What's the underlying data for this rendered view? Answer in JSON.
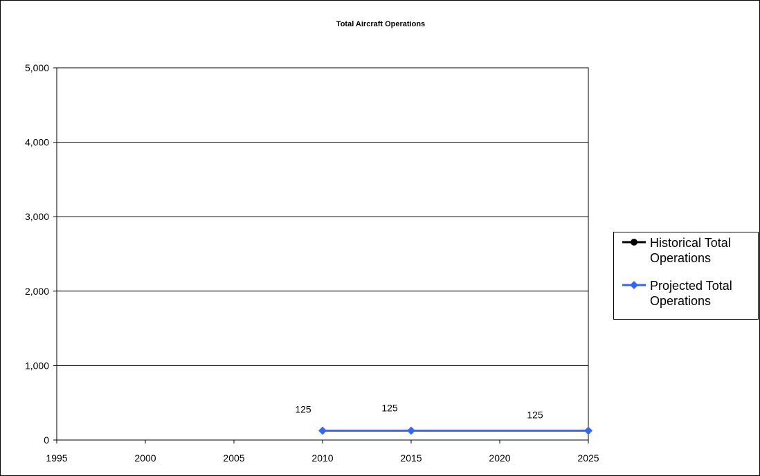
{
  "chart_data": {
    "type": "line",
    "title": "Total Aircraft Operations",
    "xlabel": "",
    "ylabel": "",
    "xlim": [
      1995,
      2025
    ],
    "ylim": [
      0,
      5000
    ],
    "x_ticks": [
      "1995",
      "2000",
      "2005",
      "2010",
      "2015",
      "2020",
      "2025"
    ],
    "y_ticks": [
      "0",
      "1,000",
      "2,000",
      "3,000",
      "4,000",
      "5,000"
    ],
    "grid": "horizontal major gridlines",
    "legend_position": "right",
    "series": [
      {
        "name": "Historical Total Operations",
        "color": "#000000",
        "marker": "circle",
        "points": []
      },
      {
        "name": "Projected Total Operations",
        "color": "#3366FF",
        "marker": "diamond",
        "points": [
          {
            "x": 2010,
            "y": 125
          },
          {
            "x": 2015,
            "y": 125
          },
          {
            "x": 2025,
            "y": 125
          }
        ]
      }
    ],
    "data_labels": [
      "125",
      "125",
      "125"
    ]
  }
}
